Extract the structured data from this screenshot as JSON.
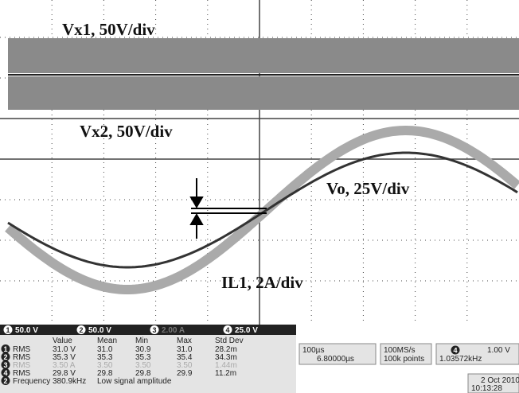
{
  "waveform_labels": [
    "Vx1, 50V/div",
    "Vx2, 50V/div",
    "Vo, 25V/div",
    "IL1, 2A/div"
  ],
  "channel_bar": [
    {
      "channel": "1",
      "scale": "50.0 V"
    },
    {
      "channel": "2",
      "scale": "50.0 V"
    },
    {
      "channel": "3",
      "scale": "2.00 A"
    },
    {
      "channel": "4",
      "scale": "25.0 V"
    }
  ],
  "measurements": {
    "header": [
      "Value",
      "Mean",
      "Min",
      "Max",
      "Std Dev"
    ],
    "rows": [
      {
        "channel": "1",
        "name": "RMS",
        "cells": [
          "31.0 V",
          "31.0",
          "30.9",
          "31.0",
          "28.2m"
        ]
      },
      {
        "channel": "2",
        "name": "RMS",
        "cells": [
          "35.3 V",
          "35.3",
          "35.3",
          "35.4",
          "34.3m"
        ]
      },
      {
        "channel": "3",
        "name": "RMS",
        "cells": [
          "3.50 A",
          "3.50",
          "3.50",
          "3.50",
          "1.44m"
        ]
      },
      {
        "channel": "4",
        "name": "RMS",
        "cells": [
          "29.8 V",
          "29.8",
          "29.8",
          "29.9",
          "11.2m"
        ]
      }
    ],
    "frequency": {
      "channel": "2",
      "name": "Frequency",
      "value": "380.9kHz",
      "note": "Low signal amplitude"
    }
  },
  "timebase": {
    "scale": "100µs",
    "position": "6.80000µs"
  },
  "acquisition": {
    "rate": "100MS/s",
    "points": "100k points"
  },
  "trigger": {
    "channel": "4",
    "level": "1.00 V",
    "frequency": "1.03572kHz"
  },
  "datetime": {
    "date": "2 Oct 2010",
    "time": "10:13:28"
  }
}
